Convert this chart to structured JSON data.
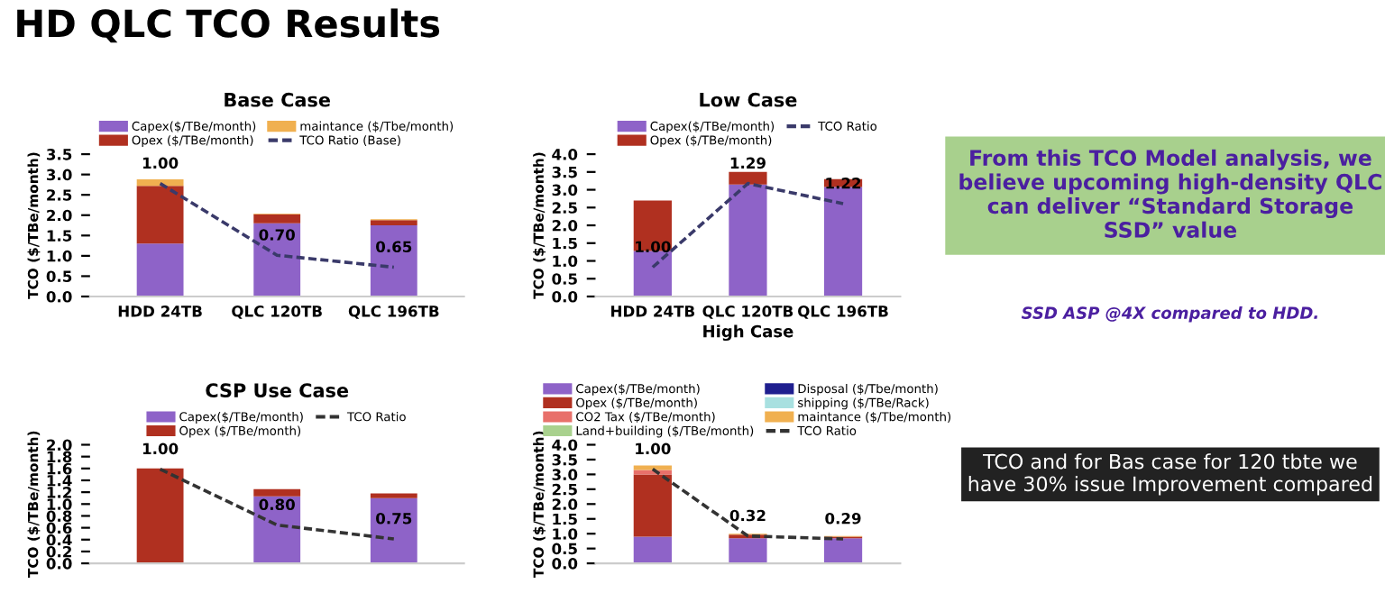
{
  "chart_data": [
    {
      "type": "other",
      "title": "HD QLC TCO Results",
      "annotations": [
        "From this TCO Model analysis, we believe upcoming high-density QLC can deliver “Standard Storage SSD” value",
        "SSD ASP @4X compared to HDD.",
        "TCO and for Bas case for 120 tbte we have 30% issue Improvement compared"
      ]
    },
    {
      "type": "bar",
      "stacked": true,
      "title": "Base Case",
      "ylabel": "TCO ($/TBe/month)",
      "categories": [
        "HDD 24TB",
        "QLC 120TB",
        "QLC 196TB"
      ],
      "ylim": [
        0,
        3.5
      ],
      "yticks": [
        {
          "value": 0,
          "label": "0.0"
        },
        0.5,
        {
          "value": 1,
          "label": "1.0"
        },
        1.5,
        {
          "value": 2,
          "label": "2.0"
        },
        2.5,
        {
          "value": 3,
          "label": "3.0"
        },
        3.5
      ],
      "legend": "top",
      "series": [
        {
          "name": "Capex($/TBe/month)",
          "color": "#8e63c8",
          "values": [
            1.3,
            1.8,
            1.75
          ]
        },
        {
          "name": "Opex ($/TBe/month)",
          "color": "#b03020",
          "values": [
            1.42,
            0.22,
            0.13
          ]
        },
        {
          "name": "maintance ($/Tbe/month)",
          "color": "#f0b050",
          "values": [
            0.16,
            0.02,
            0.02
          ]
        },
        {
          "name": "TCO Ratio (Base)",
          "type": "line",
          "axis": "y2",
          "line_style": "dashed",
          "color": "#3a3a6a",
          "values": [
            1.0,
            0.7,
            0.65
          ],
          "value_labels": [
            "1.00",
            "0.70",
            "0.65"
          ]
        }
      ]
    },
    {
      "type": "bar",
      "stacked": true,
      "title": "Low Case",
      "ylabel": "TCO ($/TBe/month)",
      "categories": [
        "HDD 24TB",
        "QLC 120TB",
        "QLC 196TB"
      ],
      "xlabel": "High Case",
      "ylim": [
        0,
        4
      ],
      "yticks": [
        {
          "value": 0,
          "label": "0.0"
        },
        0.5,
        {
          "value": 1,
          "label": "1.0"
        },
        1.5,
        {
          "value": 2,
          "label": "2.0"
        },
        2.5,
        {
          "value": 3,
          "label": "3.0"
        },
        3.5,
        {
          "value": 4,
          "label": "4.0"
        }
      ],
      "legend": "top",
      "series": [
        {
          "name": "Capex($/TBe/month)",
          "color": "#8e63c8",
          "values": [
            1.28,
            3.15,
            3.08
          ]
        },
        {
          "name": "Opex ($/TBe/month)",
          "color": "#b03020",
          "values": [
            1.42,
            0.35,
            0.22
          ]
        },
        {
          "name": "TCO Ratio",
          "type": "line",
          "axis": "y2",
          "line_style": "dashed",
          "color": "#3a3a6a",
          "values": [
            1.0,
            1.29,
            1.22
          ],
          "value_labels": [
            "1.00",
            "1.29",
            "1.22"
          ]
        }
      ]
    },
    {
      "type": "bar",
      "stacked": true,
      "title": "CSP Use Case",
      "ylabel": "TCO ($/TBe/month)",
      "categories": [
        null,
        null,
        null
      ],
      "ylim": [
        0,
        2
      ],
      "yticks": [
        {
          "value": 0,
          "label": "0.0"
        },
        0.2,
        0.4,
        0.6,
        0.8,
        {
          "value": 1,
          "label": "1.0"
        },
        1.2,
        1.4,
        1.6,
        1.8,
        {
          "value": 2,
          "label": "2.0"
        }
      ],
      "legend": "top",
      "series": [
        {
          "name": "Capex($/TBe/month)",
          "color": "#8e63c8",
          "values": [
            null,
            1.13,
            1.1
          ]
        },
        {
          "name": "Opex ($/TBe/month)",
          "color": "#b03020",
          "values": [
            1.6,
            0.12,
            0.08
          ]
        },
        {
          "name": "TCO Ratio",
          "type": "line",
          "axis": "y2",
          "line_style": "dashed",
          "color": "#333333",
          "values": [
            1.0,
            0.8,
            0.75
          ],
          "value_labels": [
            "1.00",
            "0.80",
            "0.75"
          ]
        }
      ]
    },
    {
      "type": "bar",
      "stacked": true,
      "ylabel": "TCO ($/TBe/month)",
      "categories": [
        null,
        null,
        null
      ],
      "ylim": [
        0,
        4
      ],
      "yticks": [
        {
          "value": 0,
          "label": "0.0"
        },
        0.5,
        {
          "value": 1,
          "label": "1.0"
        },
        1.5,
        {
          "value": 2,
          "label": "2.0"
        },
        2.5,
        {
          "value": 3,
          "label": "3.0"
        },
        3.5,
        {
          "value": 4,
          "label": "4.0"
        }
      ],
      "legend": "top",
      "series": [
        {
          "name": "Capex($/TBe/month)",
          "color": "#8e63c8",
          "values": [
            0.9,
            0.85,
            0.85
          ]
        },
        {
          "name": "Opex ($/TBe/month)",
          "color": "#b03020",
          "values": [
            2.1,
            0.12,
            0.05
          ]
        },
        {
          "name": "CO2 Tax ($/TBe/month)",
          "color": "#e8706a",
          "values": [
            0.15,
            null,
            null
          ]
        },
        {
          "name": "Land+building ($/TBe/month)",
          "color": "#a9d18e",
          "values": [
            null,
            null,
            null
          ]
        },
        {
          "name": "Disposal ($/Tbe/month)",
          "color": "#1f1f8f",
          "values": [
            null,
            null,
            null
          ]
        },
        {
          "name": "shipping ($/TBe/Rack)",
          "color": "#a8e0e0",
          "values": [
            null,
            null,
            null
          ]
        },
        {
          "name": "maintance ($/Tbe/month)",
          "color": "#f0b050",
          "values": [
            0.15,
            0.03,
            0.02
          ]
        },
        {
          "name": "TCO Ratio",
          "type": "line",
          "axis": "y2",
          "line_style": "dashed",
          "color": "#333333",
          "values": [
            1.0,
            0.32,
            0.29
          ],
          "value_labels": [
            "1.00",
            "0.32",
            "0.29"
          ]
        }
      ]
    }
  ]
}
